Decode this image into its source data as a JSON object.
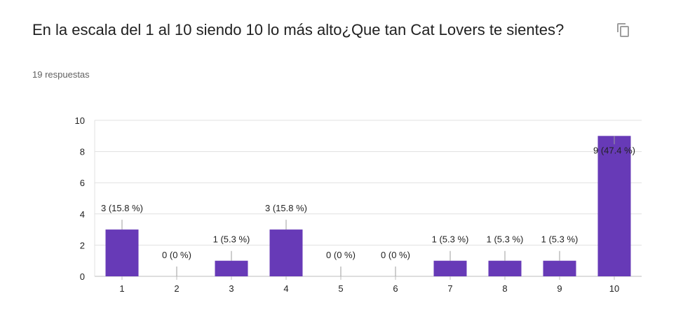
{
  "question": {
    "title": "En la escala del 1 al 10 siendo 10 lo más alto¿Que tan Cat Lovers te sientes?",
    "responses": "19 respuestas",
    "copy_icon": "copy-icon"
  },
  "colors": {
    "bar": "#673ab7",
    "grid": "#e0e0e0",
    "axis": "#333333",
    "label": "#222222"
  },
  "chart_data": {
    "type": "bar",
    "categories": [
      "1",
      "2",
      "3",
      "4",
      "5",
      "6",
      "7",
      "8",
      "9",
      "10"
    ],
    "values": [
      3,
      0,
      1,
      3,
      0,
      0,
      1,
      1,
      1,
      9
    ],
    "data_labels": [
      "3 (15.8 %)",
      "0 (0 %)",
      "1 (5.3 %)",
      "3 (15.8 %)",
      "0 (0 %)",
      "0 (0 %)",
      "1 (5.3 %)",
      "1 (5.3 %)",
      "1 (5.3 %)",
      "9 (47.4 %)"
    ],
    "yticks": [
      "0",
      "2",
      "4",
      "6",
      "8",
      "10"
    ],
    "ylim": [
      0,
      10
    ],
    "grid": true
  }
}
